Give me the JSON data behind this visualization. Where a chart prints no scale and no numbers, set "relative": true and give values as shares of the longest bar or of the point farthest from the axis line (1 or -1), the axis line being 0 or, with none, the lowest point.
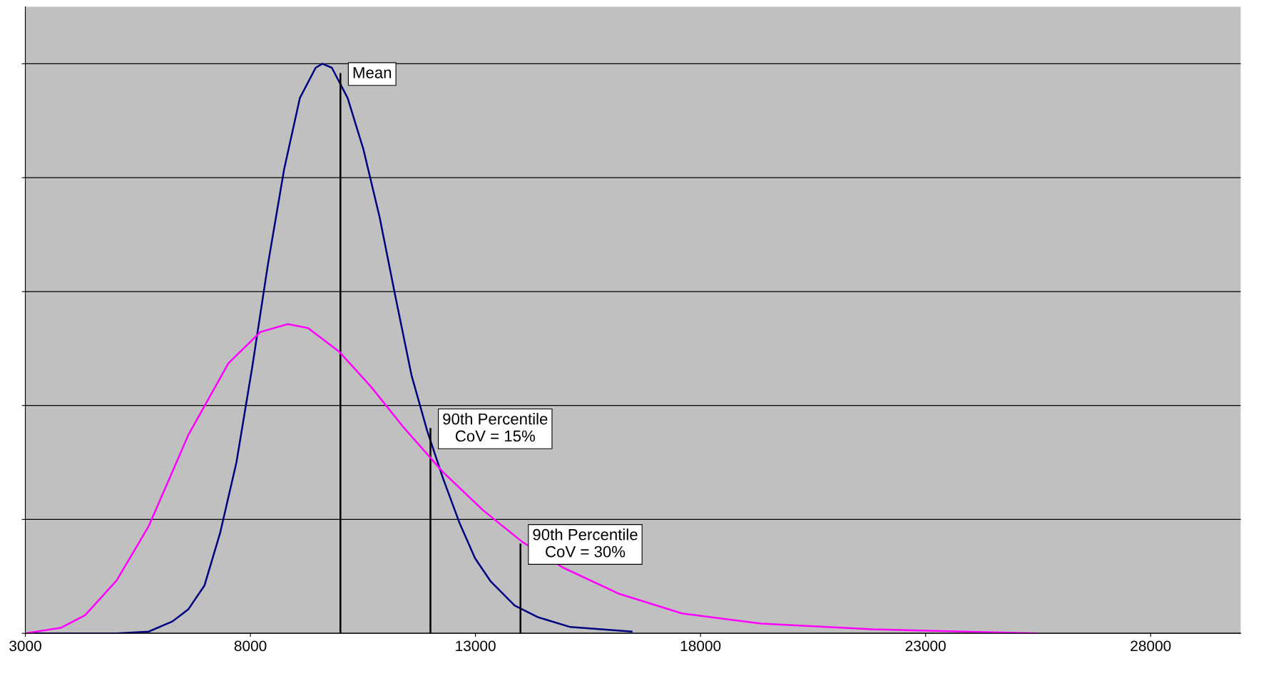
{
  "chart_data": {
    "type": "line",
    "relative": true,
    "xlim": [
      3000,
      30000
    ],
    "xticks": [
      3000,
      8000,
      13000,
      18000,
      23000,
      28000
    ],
    "grid": "y",
    "tick_labels": "x",
    "marker": "none",
    "line_style": "solid",
    "series": [
      {
        "color": "#000080",
        "x": [
          3000,
          5030,
          5740,
          6270,
          6620,
          6980,
          7330,
          7690,
          8040,
          8390,
          8750,
          9100,
          9450,
          9600,
          9810,
          10160,
          10510,
          10870,
          11220,
          11580,
          11930,
          12280,
          12640,
          12990,
          13340,
          13870,
          14400,
          15110,
          16470
        ],
        "values": [
          0,
          0,
          0.003,
          0.021,
          0.042,
          0.084,
          0.177,
          0.3,
          0.467,
          0.648,
          0.815,
          0.94,
          0.993,
          1.0,
          0.993,
          0.94,
          0.85,
          0.731,
          0.592,
          0.453,
          0.355,
          0.272,
          0.195,
          0.132,
          0.091,
          0.049,
          0.028,
          0.011,
          0.003
        ]
      },
      {
        "color": "#000000",
        "x": [
          10000,
          10000
        ],
        "values": [
          0,
          0.982
        ]
      },
      {
        "color": "#000000",
        "x": [
          12000,
          12000
        ],
        "values": [
          0,
          0.359
        ]
      },
      {
        "color": "#000000",
        "x": [
          14000,
          14000
        ],
        "values": [
          0,
          0.156
        ]
      },
      {
        "color": "#ff00ff",
        "x": [
          3000,
          3800,
          4330,
          5030,
          5740,
          6620,
          7510,
          8220,
          8830,
          9280,
          9980,
          10690,
          11400,
          12280,
          13170,
          14050,
          14930,
          16170,
          17590,
          19350,
          21830,
          25490
        ],
        "values": [
          0,
          0.01,
          0.032,
          0.093,
          0.188,
          0.348,
          0.474,
          0.529,
          0.543,
          0.536,
          0.494,
          0.432,
          0.362,
          0.283,
          0.216,
          0.16,
          0.116,
          0.07,
          0.035,
          0.017,
          0.007,
          0
        ]
      }
    ],
    "annotations": [
      {
        "text": "Mean",
        "x": 10000,
        "y": 0.982
      },
      {
        "text": "90th Percentile\nCoV = 15%",
        "x": 12000,
        "y": 0.359
      },
      {
        "text": "90th Percentile\nCoV = 30%",
        "x": 14000,
        "y": 0.156
      }
    ]
  }
}
